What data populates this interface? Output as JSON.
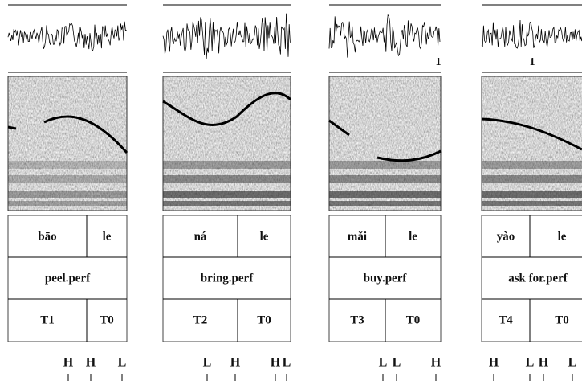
{
  "panels": [
    {
      "syllables": [
        "bāo",
        "le"
      ],
      "gloss": "peel.perf",
      "tones": [
        "T1",
        "T0"
      ],
      "tone_labels": [
        "H",
        "H",
        "L"
      ]
    },
    {
      "syllables": [
        "ná",
        "le"
      ],
      "gloss": "bring.perf",
      "tones": [
        "T2",
        "T0"
      ],
      "tone_labels": [
        "L",
        "H",
        "H",
        "L"
      ]
    },
    {
      "syllables": [
        "mǎi",
        "le"
      ],
      "gloss": "buy.perf",
      "tones": [
        "T3",
        "T0"
      ],
      "tone_labels": [
        "L",
        "L",
        "H"
      ],
      "mark": "1"
    },
    {
      "syllables": [
        "yào",
        "le"
      ],
      "gloss": "ask for.perf",
      "tones": [
        "T4",
        "T0"
      ],
      "tone_labels": [
        "H",
        "L",
        "H",
        "L"
      ],
      "mark": "1"
    }
  ]
}
